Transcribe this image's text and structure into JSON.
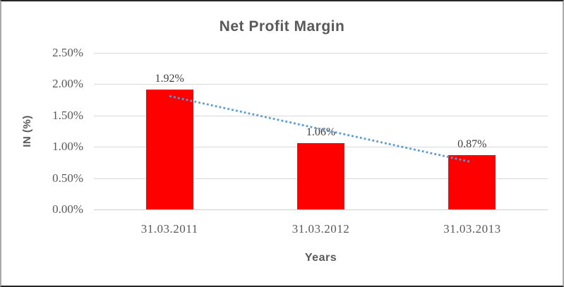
{
  "chart_data": {
    "type": "bar",
    "title": "Net Profit Margin",
    "xlabel": "Years",
    "ylabel": "IN (%)",
    "categories": [
      "31.03.2011",
      "31.03.2012",
      "31.03.2013"
    ],
    "series": [
      {
        "name": "Net Profit Margin",
        "values": [
          1.92,
          1.06,
          0.87
        ]
      }
    ],
    "data_labels": [
      "1.92%",
      "1.06%",
      "0.87%"
    ],
    "y_ticks": [
      {
        "label": "2.50%",
        "value": 2.5
      },
      {
        "label": "2.00%",
        "value": 2.0
      },
      {
        "label": "1.50%",
        "value": 1.5
      },
      {
        "label": "1.00%",
        "value": 1.0
      },
      {
        "label": "0.50%",
        "value": 0.5
      },
      {
        "label": "0.00%",
        "value": 0.0
      }
    ],
    "ylim": [
      0,
      2.5
    ],
    "grid": true,
    "legend": false,
    "trendline": {
      "type": "linear",
      "style": "dotted",
      "start_value": 1.81,
      "end_value": 0.76
    }
  },
  "colors": {
    "bar": "#FF0000",
    "trendline": "#5B9BD5",
    "title_text": "#595959",
    "axis_text": "#595959",
    "data_label_text": "#3F3F3F",
    "gridline": "#D9D9D9",
    "axis_line": "#CFCFCF",
    "frame_top_bottom": "#262626",
    "frame_sides": "#ABABAB",
    "background": "#FFFFFF"
  }
}
